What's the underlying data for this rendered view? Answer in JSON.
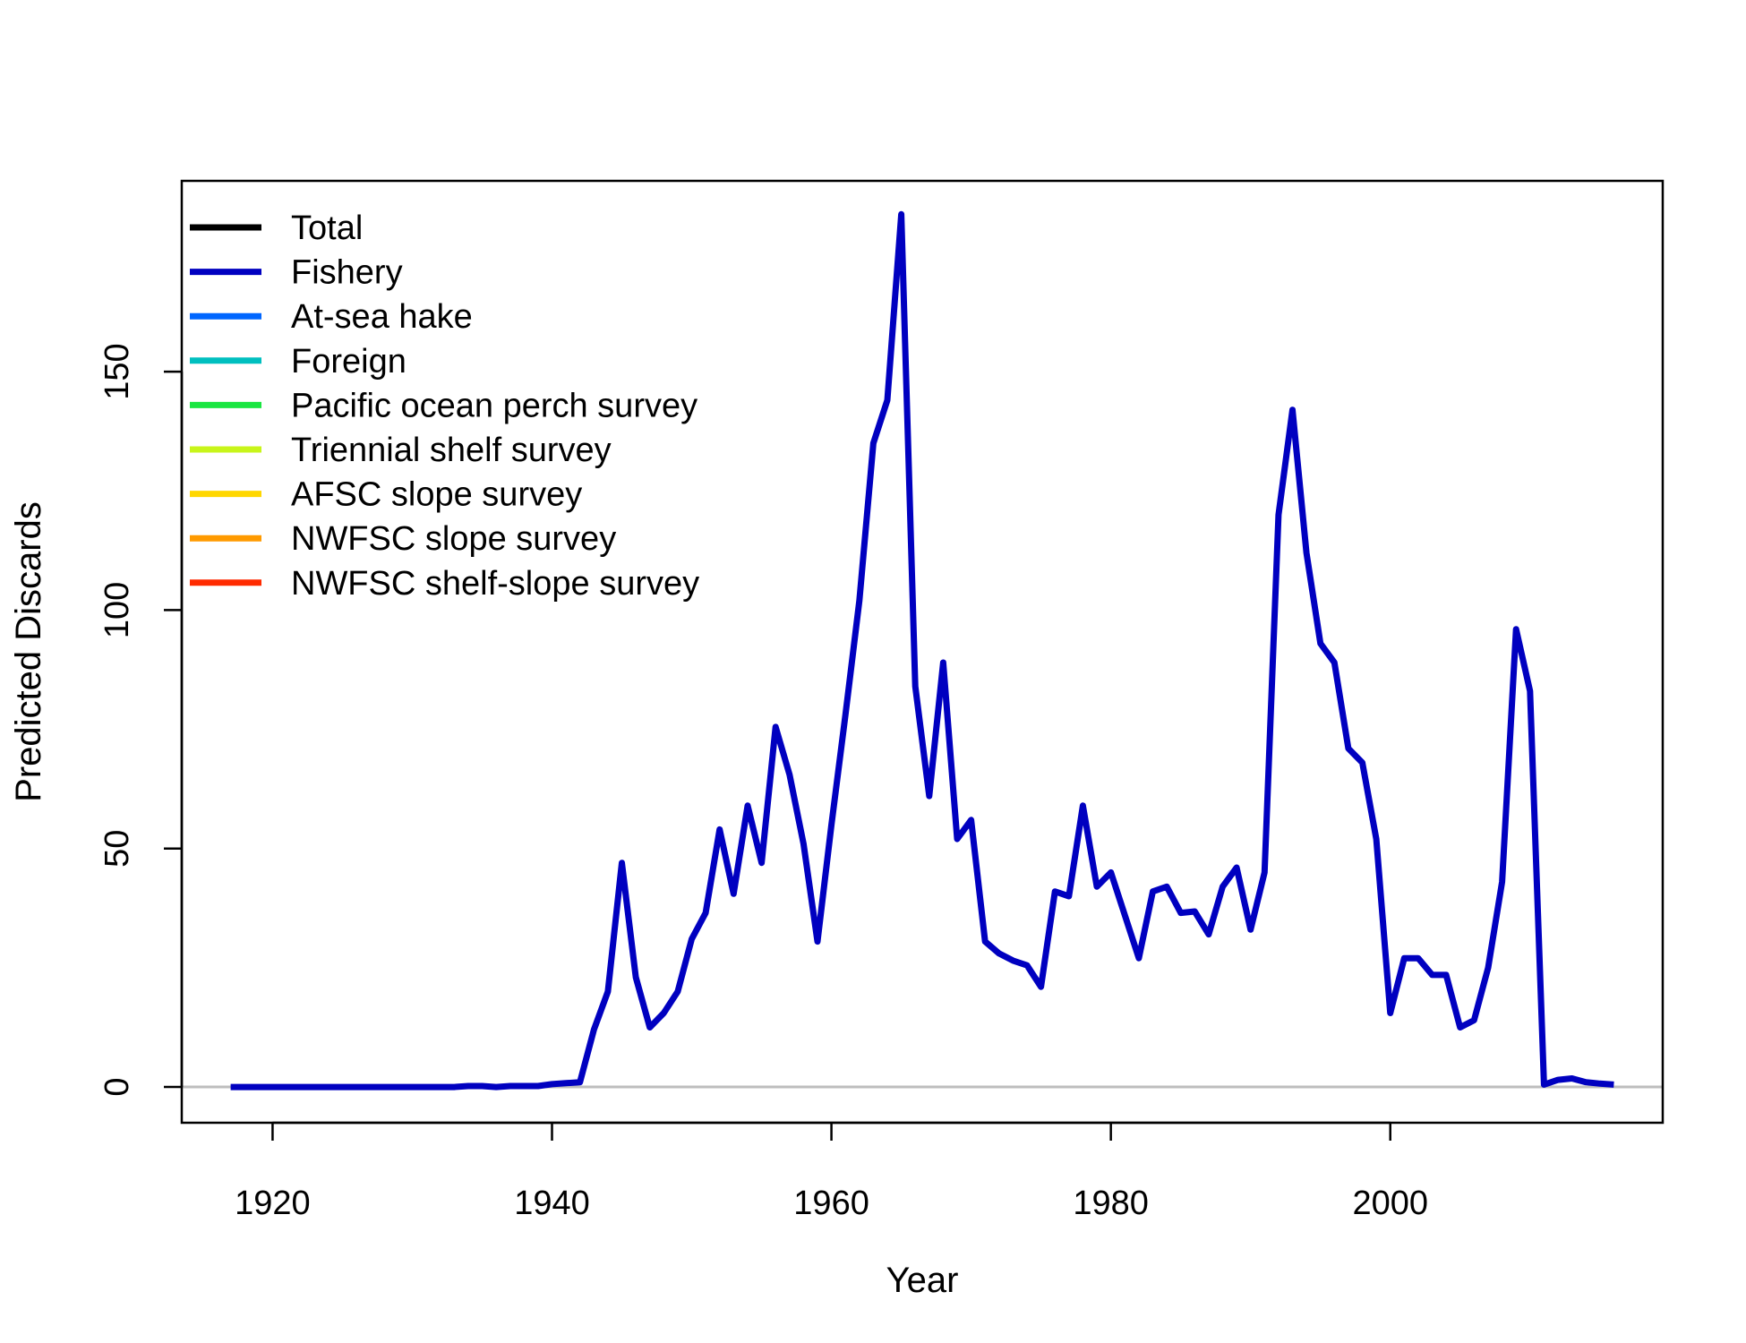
{
  "chart_data": {
    "type": "line",
    "xlabel": "Year",
    "ylabel": "Predicted Discards",
    "xlim": [
      1913.5,
      2019.5
    ],
    "ylim": [
      -7.5,
      190
    ],
    "x_ticks": [
      1920,
      1940,
      1960,
      1980,
      2000
    ],
    "y_ticks": [
      0,
      50,
      100,
      150
    ],
    "x_tick_labels": [
      "1920",
      "1940",
      "1960",
      "1980",
      "2000"
    ],
    "y_tick_labels": [
      "0",
      "50",
      "100",
      "150"
    ],
    "reference_line": {
      "y": 0,
      "color": "#bebebe"
    },
    "grid": false,
    "legend_position": "top-left",
    "legend": [
      {
        "label": "Total",
        "color": "#000000"
      },
      {
        "label": "Fishery",
        "color": "#0000c0"
      },
      {
        "label": "At-sea hake",
        "color": "#0066ff"
      },
      {
        "label": "Foreign",
        "color": "#00bfbf"
      },
      {
        "label": "Pacific ocean perch survey",
        "color": "#19e640"
      },
      {
        "label": "Triennial shelf survey",
        "color": "#c8f51a"
      },
      {
        "label": "AFSC slope survey",
        "color": "#ffd700"
      },
      {
        "label": "NWFSC slope survey",
        "color": "#ff9a00"
      },
      {
        "label": "NWFSC shelf-slope survey",
        "color": "#ff2a00"
      }
    ],
    "series": [
      {
        "name": "Fishery",
        "color": "#0000c0",
        "x": [
          1917,
          1918,
          1919,
          1920,
          1921,
          1922,
          1923,
          1924,
          1925,
          1926,
          1927,
          1928,
          1929,
          1930,
          1931,
          1932,
          1933,
          1934,
          1935,
          1936,
          1937,
          1938,
          1939,
          1940,
          1941,
          1942,
          1943,
          1944,
          1945,
          1946,
          1947,
          1948,
          1949,
          1950,
          1951,
          1952,
          1953,
          1954,
          1955,
          1956,
          1957,
          1958,
          1959,
          1960,
          1961,
          1962,
          1963,
          1964,
          1965,
          1966,
          1967,
          1968,
          1969,
          1970,
          1971,
          1972,
          1973,
          1974,
          1975,
          1976,
          1977,
          1978,
          1979,
          1980,
          1981,
          1982,
          1983,
          1984,
          1985,
          1986,
          1987,
          1988,
          1989,
          1990,
          1991,
          1992,
          1993,
          1994,
          1995,
          1996,
          1997,
          1998,
          1999,
          2000,
          2001,
          2002,
          2003,
          2004,
          2005,
          2006,
          2007,
          2008,
          2009,
          2010,
          2011,
          2012,
          2013,
          2014,
          2015,
          2016
        ],
        "values": [
          0,
          0,
          0,
          0,
          0,
          0,
          0,
          0,
          0,
          0,
          0,
          0,
          0,
          0,
          0,
          0,
          0,
          0.2,
          0.2,
          0,
          0.2,
          0.2,
          0.2,
          0.6,
          0.8,
          1,
          12,
          20,
          47,
          23,
          12.5,
          15.5,
          20,
          31,
          36.5,
          54,
          40.5,
          59,
          47,
          75.5,
          65.5,
          51,
          30.5,
          55,
          78,
          102,
          135,
          144,
          183,
          84,
          61,
          89,
          52,
          56,
          30.5,
          28,
          26.5,
          25.5,
          21,
          41,
          40,
          59,
          42,
          45,
          36,
          27,
          41,
          42,
          36.5,
          36.8,
          32,
          42,
          46,
          33,
          45,
          120,
          142,
          112,
          93,
          89,
          71,
          68,
          52,
          15.5,
          27,
          27,
          23.5,
          23.5,
          12.5,
          14,
          25,
          43,
          96,
          83,
          0.5,
          1.5,
          1.8,
          1,
          0.7,
          0.5
        ]
      }
    ]
  }
}
